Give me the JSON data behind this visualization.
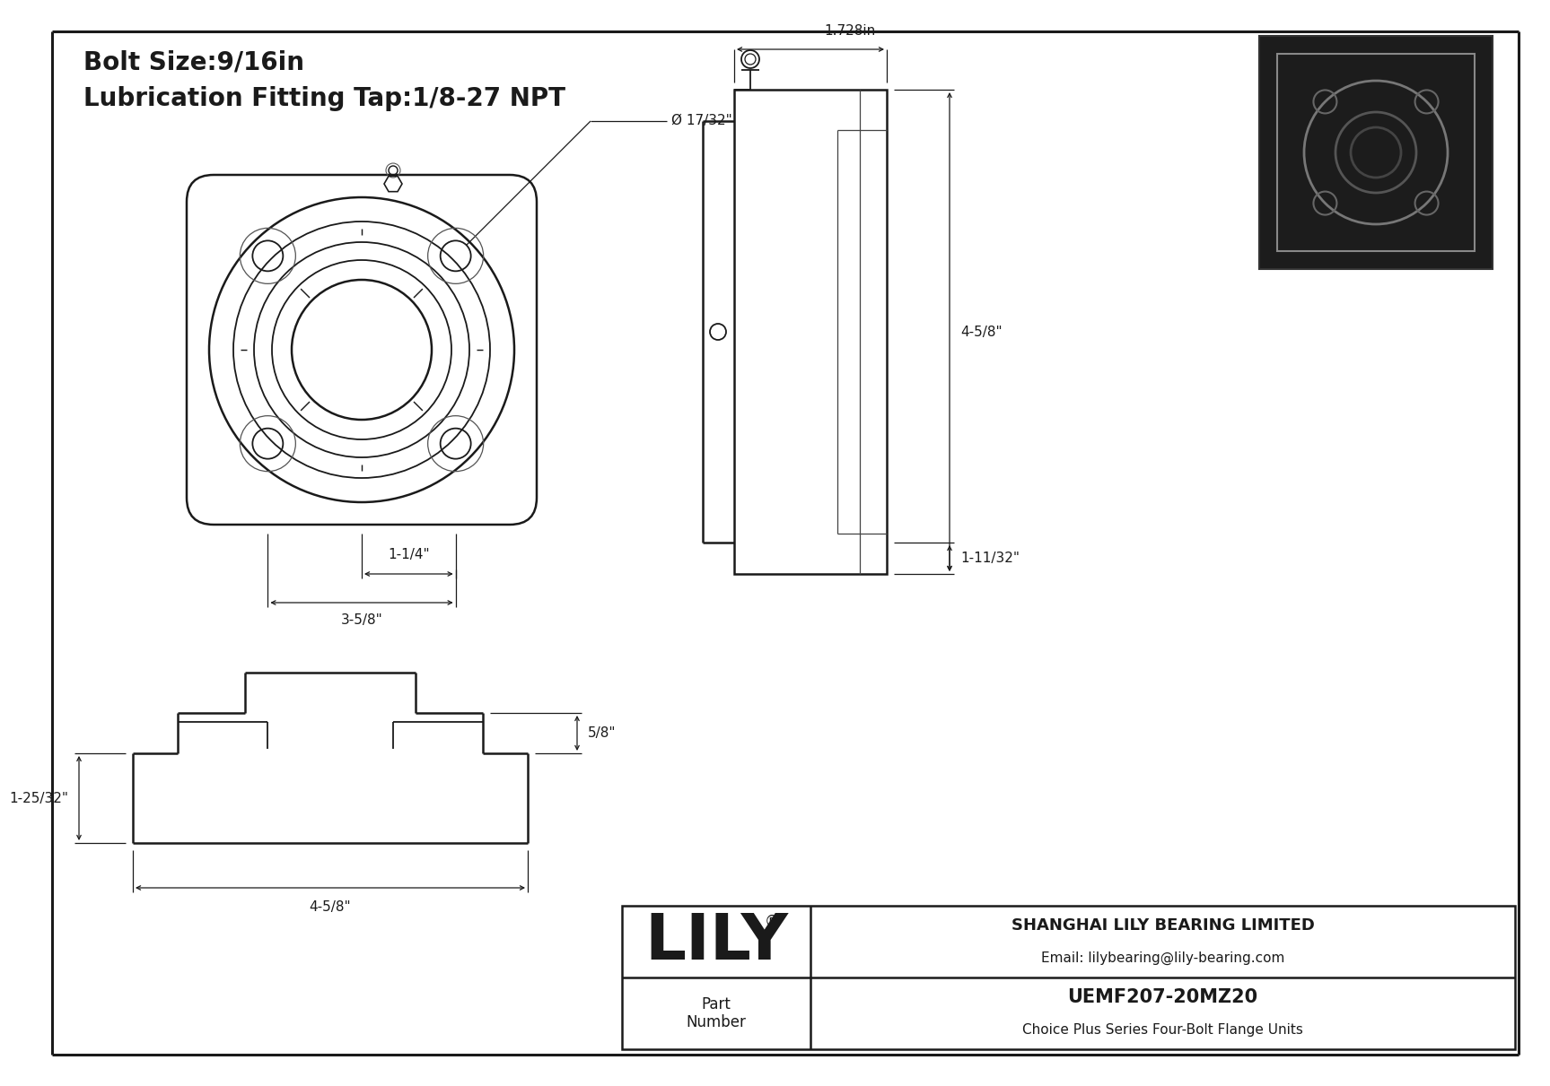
{
  "bg_color": "#ffffff",
  "line_color": "#1a1a1a",
  "dim_color": "#1a1a1a",
  "title_line1": "Bolt Size:9/16in",
  "title_line2": "Lubrication Fitting Tap:1/8-27 NPT",
  "title_fontsize": 20,
  "dim_fontsize": 11.5,
  "company_name": "SHANGHAI LILY BEARING LIMITED",
  "company_email": "Email: lilybearing@lily-bearing.com",
  "part_number": "UEMF207-20MZ20",
  "part_series": "Choice Plus Series Four-Bolt Flange Units",
  "lily_text": "LILY",
  "dims": {
    "bolt_hole_diameter": "Ø 17/32\"",
    "dim_1_25_32": "1-25/32\"",
    "dim_1_1_4": "1-1/4\"",
    "dim_3_5_8": "3-5/8\"",
    "dim_4_5_8_horiz": "4-5/8\"",
    "dim_5_8": "5/8\"",
    "dim_1_728": "1.728in",
    "dim_4_5_8_vert": "4-5/8\"",
    "dim_1_11_32": "1-11/32\""
  }
}
